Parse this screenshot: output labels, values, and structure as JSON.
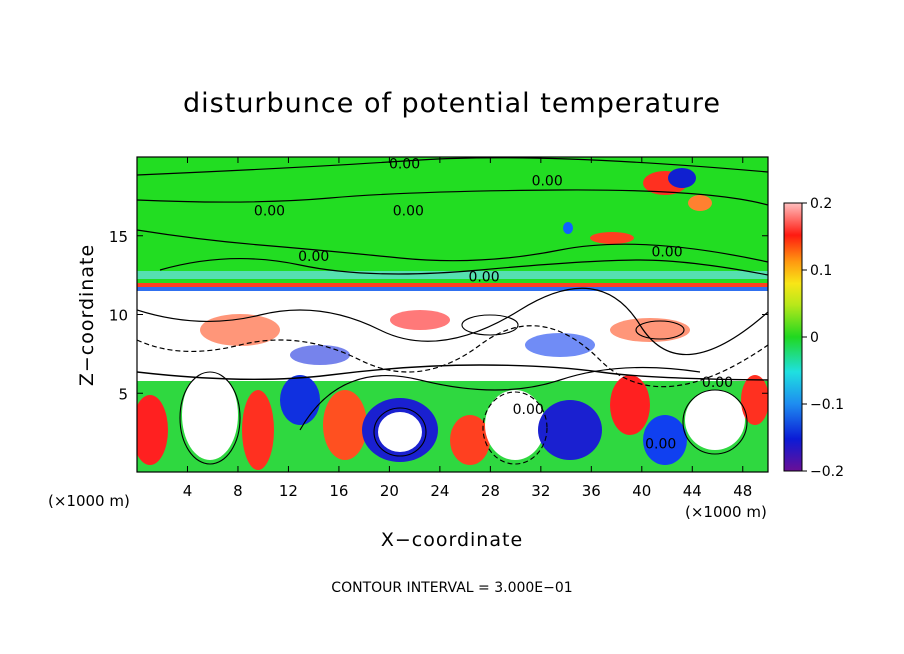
{
  "chart_data": {
    "type": "heatmap",
    "title": "disturbunce of potential temperature",
    "xlabel": "X−coordinate",
    "ylabel": "Z−coordinate",
    "x_unit_left": "(×1000 m)",
    "x_unit_right": "(×1000 m)",
    "footer": "CONTOUR INTERVAL = 3.000E−01",
    "xlim": [
      0,
      50
    ],
    "ylim": [
      0,
      20
    ],
    "x_ticks": [
      4,
      8,
      12,
      16,
      20,
      24,
      28,
      32,
      36,
      40,
      44,
      48
    ],
    "y_ticks": [
      5,
      10,
      15
    ],
    "colorbar": {
      "min": -0.2,
      "max": 0.2,
      "ticks": [
        {
          "value": 0.2,
          "label": "0.2"
        },
        {
          "value": 0.1,
          "label": "0.1"
        },
        {
          "value": 0,
          "label": "0"
        },
        {
          "value": -0.1,
          "label": "−0.1"
        },
        {
          "value": -0.2,
          "label": "−0.2"
        }
      ]
    },
    "contour_labels": [
      {
        "text": "0.00",
        "x": 21.5,
        "z": 16.6
      },
      {
        "text": "0.00",
        "x": 32.5,
        "z": 18.5
      },
      {
        "text": "0.00",
        "x": 21.2,
        "z": 19.6
      },
      {
        "text": "0.00",
        "x": 10.5,
        "z": 16.6
      },
      {
        "text": "0.00",
        "x": 14.0,
        "z": 13.7
      },
      {
        "text": "0.00",
        "x": 27.5,
        "z": 12.4
      },
      {
        "text": "0.00",
        "x": 42.0,
        "z": 14.0
      },
      {
        "text": "0.00",
        "x": 46.0,
        "z": 5.7
      },
      {
        "text": "0.00",
        "x": 31.0,
        "z": 4.0
      },
      {
        "text": "0.00",
        "x": 41.5,
        "z": 1.8
      }
    ]
  }
}
